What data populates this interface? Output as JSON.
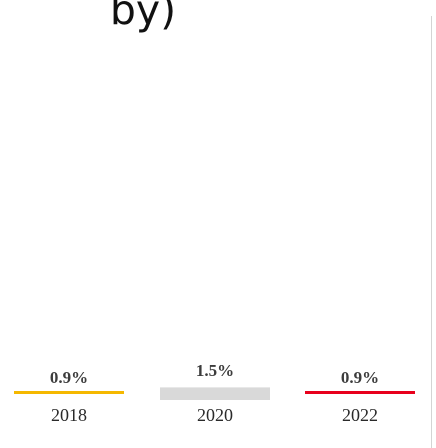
{
  "chart_data": {
    "type": "bar",
    "title": "by)",
    "categories": [
      "2018",
      "2020",
      "2022"
    ],
    "values": [
      0.9,
      1.5,
      0.9
    ],
    "value_labels": [
      "0.9%",
      "1.5%",
      "0.9%"
    ],
    "colors": [
      "#f5b800",
      "#d9d9d9",
      "#e8001c"
    ],
    "grid": false,
    "legend": "none"
  }
}
